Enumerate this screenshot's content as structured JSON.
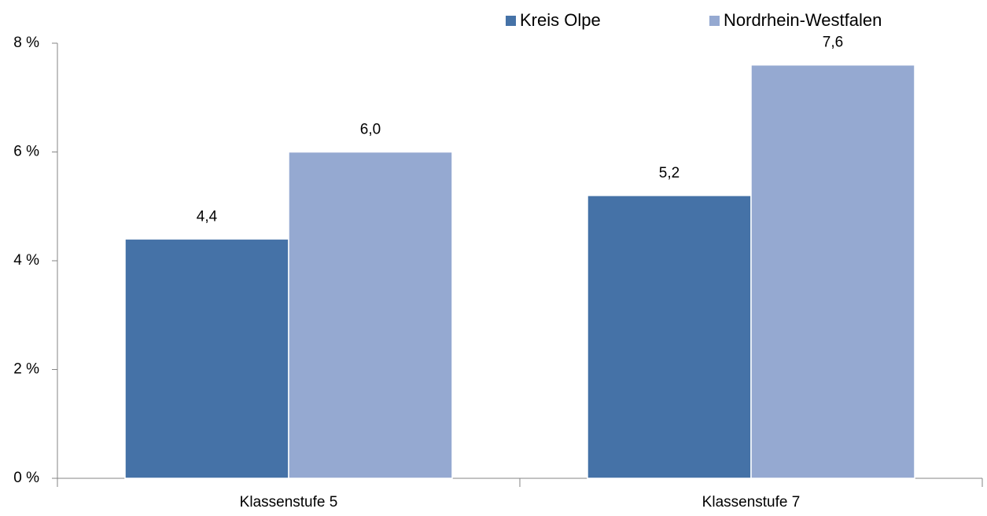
{
  "chart_data": {
    "type": "bar",
    "categories": [
      "Klassenstufe 5",
      "Klassenstufe 7"
    ],
    "series": [
      {
        "name": "Kreis Olpe",
        "color": "#4572a7",
        "values": [
          4.4,
          5.2
        ],
        "value_labels": [
          "4,4",
          "5,2"
        ]
      },
      {
        "name": "Nordrhein-Westfalen",
        "color": "#95a9d1",
        "values": [
          6.0,
          7.6
        ],
        "value_labels": [
          "6,0",
          "7,6"
        ]
      }
    ],
    "ylim": [
      0,
      8
    ],
    "yticks": [
      {
        "value": 0,
        "label": "0 %"
      },
      {
        "value": 2,
        "label": "2 %"
      },
      {
        "value": 4,
        "label": "4 %"
      },
      {
        "value": 6,
        "label": "6 %"
      },
      {
        "value": 8,
        "label": "8 %"
      }
    ],
    "grid": false,
    "legend": "top"
  }
}
